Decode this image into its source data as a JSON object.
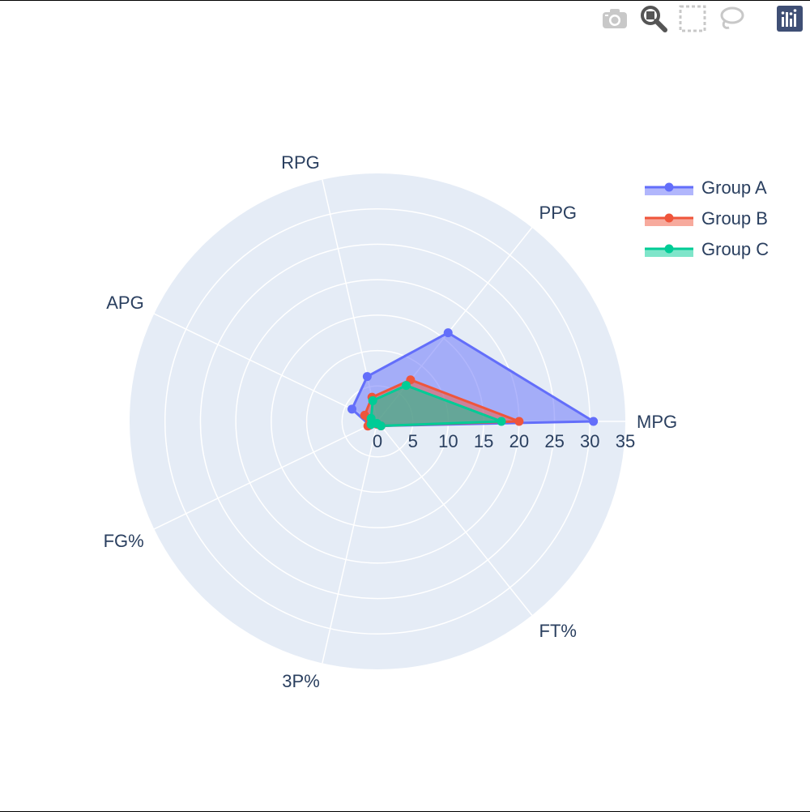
{
  "toolbar": {
    "icons": [
      "camera-icon",
      "zoom-icon",
      "box-select-icon",
      "lasso-select-icon",
      "plotly-logo-icon"
    ]
  },
  "chart_data": {
    "type": "radar",
    "theta": [
      "MPG",
      "PPG",
      "RPG",
      "APG",
      "FG%",
      "3P%",
      "FT%"
    ],
    "radial_range": [
      0,
      35
    ],
    "radial_ticks": [
      "0",
      "5",
      "10",
      "15",
      "20",
      "25",
      "30",
      "35"
    ],
    "radial_tick_values": [
      0,
      5,
      10,
      15,
      20,
      25,
      30,
      35
    ],
    "grid": true,
    "legend_position": "top-right",
    "series": [
      {
        "name": "Group A",
        "color": "#636efa",
        "values": [
          30.5,
          16.0,
          6.5,
          4.0,
          1.2,
          0.4,
          0.8
        ]
      },
      {
        "name": "Group B",
        "color": "#ef553b",
        "values": [
          20.0,
          7.5,
          3.5,
          2.0,
          1.5,
          0.4,
          0.8
        ]
      },
      {
        "name": "Group C",
        "color": "#00cc96",
        "values": [
          17.5,
          6.5,
          3.0,
          1.0,
          1.0,
          0.3,
          0.8
        ]
      }
    ]
  }
}
